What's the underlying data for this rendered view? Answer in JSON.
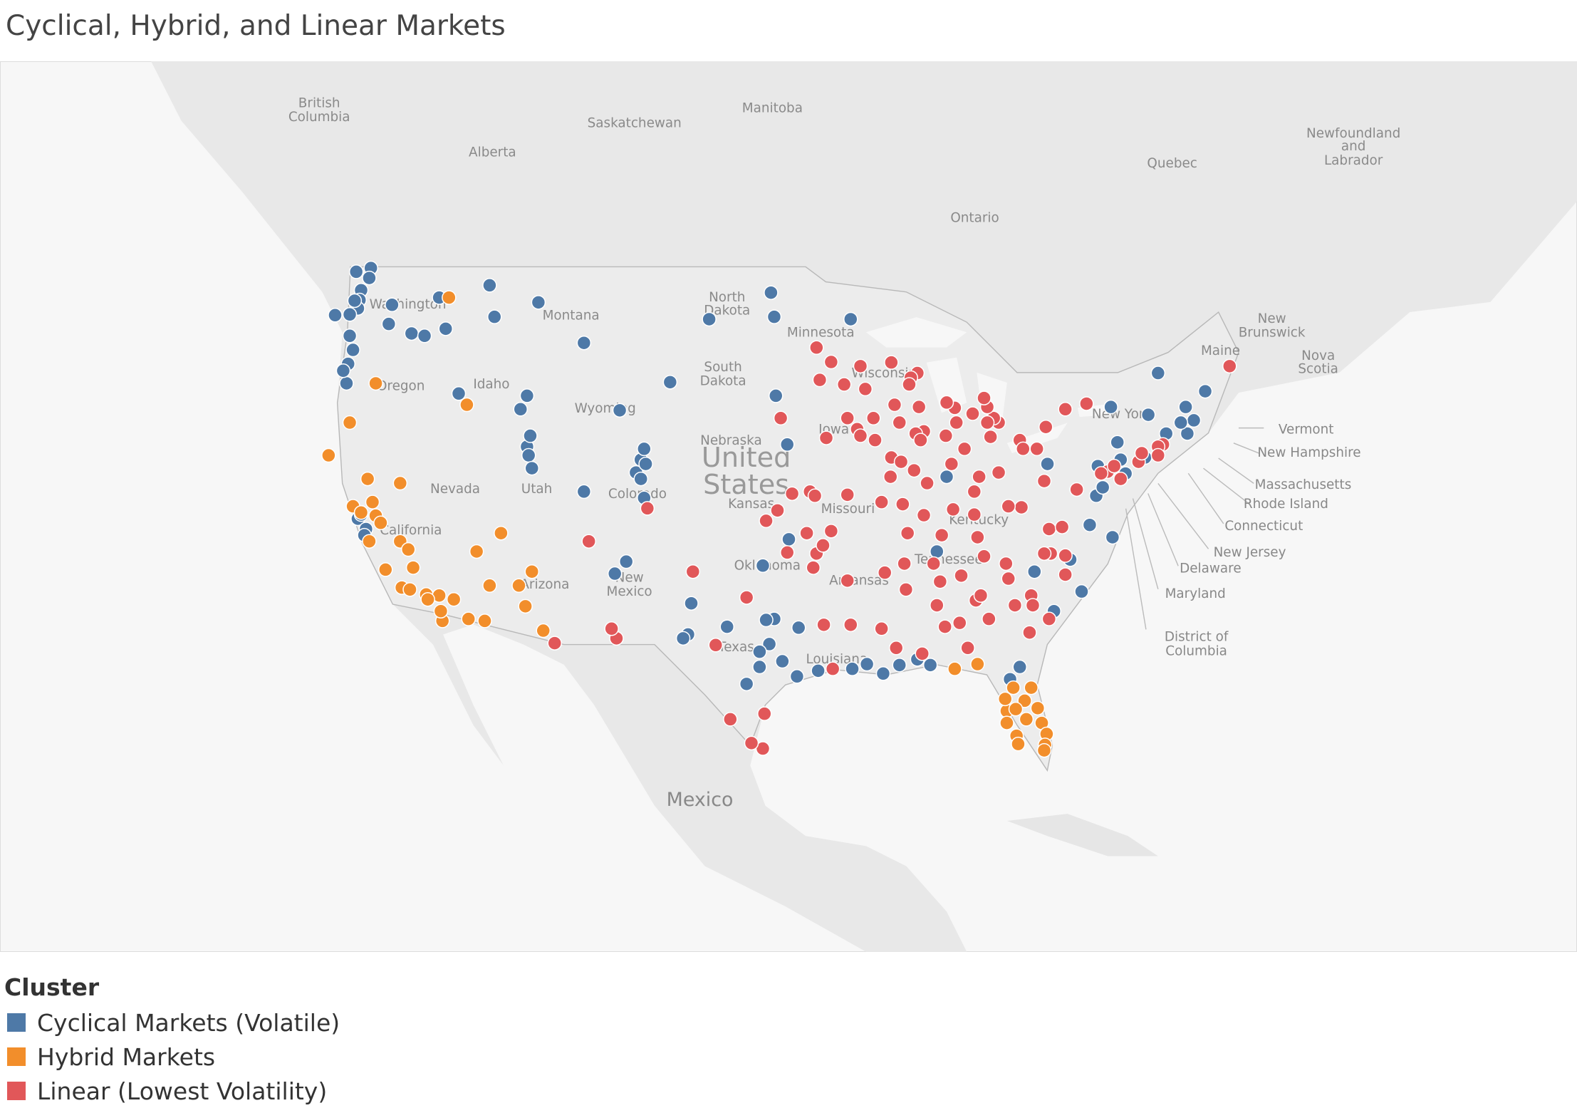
{
  "chart_data": {
    "type": "map",
    "title": "Cyclical, Hybrid, and Linear Markets",
    "legend_title": "Cluster",
    "map_labels": [
      "British",
      "Columbia",
      "Alberta",
      "Saskatchewan",
      "Manitoba",
      "Ontario",
      "Quebec",
      "Newfoundland",
      "and",
      "Labrador",
      "New",
      "Brunswick",
      "Nova",
      "Scotia",
      "Washington",
      "Oregon",
      "Idaho",
      "Montana",
      "Wyoming",
      "North",
      "Dakota",
      "South",
      "Dakota",
      "Minnesota",
      "Wisconsin",
      "Nebraska",
      "United",
      "States",
      "Kansas",
      "Missouri",
      "Iowa",
      "Nevada",
      "Utah",
      "Colorado",
      "California",
      "Arizona",
      "New",
      "Mexico",
      "Oklahoma",
      "Texas",
      "Arkansas",
      "Louisiana",
      "Tennessee",
      "Kentucky",
      "New York",
      "Mexico",
      "Maine",
      "Vermont",
      "New Hampshire",
      "Massachusetts",
      "Rhode Island",
      "Connecticut",
      "New Jersey",
      "Delaware",
      "Maryland",
      "District of",
      "Columbia"
    ],
    "series": [
      {
        "name": "Cyclical Markets (Volatile)",
        "color": "#4e79a7",
        "points": [
          [
            -121.6,
            48.9
          ],
          [
            -121.7,
            48.5
          ],
          [
            -122.5,
            48.75
          ],
          [
            -122.2,
            48.0
          ],
          [
            -122.3,
            47.6
          ],
          [
            -122.4,
            47.25
          ],
          [
            -122.9,
            47.0
          ],
          [
            -122.6,
            47.57
          ],
          [
            -122.9,
            46.1
          ],
          [
            -122.7,
            45.5
          ],
          [
            -123.0,
            44.9
          ],
          [
            -123.1,
            44.05
          ],
          [
            -123.3,
            44.6
          ],
          [
            -123.8,
            46.97
          ],
          [
            -117.4,
            47.7
          ],
          [
            -120.3,
            47.4
          ],
          [
            -120.5,
            46.6
          ],
          [
            -119.1,
            46.2
          ],
          [
            -118.3,
            46.1
          ],
          [
            -117.0,
            46.4
          ],
          [
            -114.0,
            46.9
          ],
          [
            -114.3,
            48.2
          ],
          [
            -108.5,
            45.8
          ],
          [
            -111.3,
            47.5
          ],
          [
            -116.2,
            43.6
          ],
          [
            -112.0,
            43.5
          ],
          [
            -112.4,
            42.9
          ],
          [
            -112.0,
            41.2
          ],
          [
            -111.9,
            40.8
          ],
          [
            -111.7,
            40.2
          ],
          [
            -111.8,
            41.7
          ],
          [
            -122.4,
            37.8
          ],
          [
            -121.9,
            37.3
          ],
          [
            -122.0,
            37.0
          ],
          [
            -122.2,
            38.0
          ],
          [
            -105.0,
            40.6
          ],
          [
            -105.3,
            40.0
          ],
          [
            -105.0,
            39.7
          ],
          [
            -104.7,
            40.4
          ],
          [
            -104.8,
            38.8
          ],
          [
            -104.8,
            41.1
          ],
          [
            -108.5,
            39.1
          ],
          [
            -106.3,
            42.85
          ],
          [
            -100.8,
            46.8
          ],
          [
            -96.8,
            46.9
          ],
          [
            -97.0,
            47.9
          ],
          [
            -103.2,
            44.1
          ],
          [
            -96.7,
            43.5
          ],
          [
            -92.1,
            46.8
          ],
          [
            -96.0,
            41.3
          ],
          [
            -106.6,
            35.1
          ],
          [
            -105.9,
            35.7
          ],
          [
            -97.5,
            35.5
          ],
          [
            -101.9,
            33.6
          ],
          [
            -102.1,
            32.0
          ],
          [
            -102.4,
            31.8
          ],
          [
            -99.7,
            32.4
          ],
          [
            -96.8,
            32.8
          ],
          [
            -97.3,
            32.75
          ],
          [
            -97.1,
            31.5
          ],
          [
            -97.7,
            30.3
          ],
          [
            -98.5,
            29.4
          ],
          [
            -95.4,
            29.8
          ],
          [
            -94.1,
            30.1
          ],
          [
            -97.7,
            31.1
          ],
          [
            -95.3,
            32.35
          ],
          [
            -92.0,
            30.2
          ],
          [
            -91.1,
            30.45
          ],
          [
            -90.1,
            29.95
          ],
          [
            -89.1,
            30.4
          ],
          [
            -88.0,
            30.7
          ],
          [
            -87.2,
            30.4
          ],
          [
            -86.8,
            36.2
          ],
          [
            -86.2,
            39.8
          ],
          [
            -80.8,
            35.2
          ],
          [
            -78.6,
            35.8
          ],
          [
            -79.6,
            33.2
          ],
          [
            -77.9,
            34.2
          ],
          [
            -77.0,
            38.9
          ],
          [
            -76.6,
            39.3
          ],
          [
            -77.4,
            37.5
          ],
          [
            -76.0,
            36.9
          ],
          [
            -75.2,
            39.95
          ],
          [
            -74.0,
            40.7
          ],
          [
            -71.0,
            42.4
          ],
          [
            -72.7,
            41.8
          ],
          [
            -71.4,
            41.8
          ],
          [
            -71.8,
            42.3
          ],
          [
            -73.8,
            42.65
          ],
          [
            -76.1,
            43.0
          ],
          [
            -73.2,
            44.5
          ],
          [
            -70.3,
            43.7
          ],
          [
            -71.5,
            43.0
          ],
          [
            -80.0,
            40.4
          ],
          [
            -76.9,
            40.3
          ],
          [
            -75.5,
            40.6
          ],
          [
            -75.7,
            41.4
          ],
          [
            -81.7,
            30.3
          ],
          [
            -82.3,
            29.65
          ],
          [
            -96.3,
            30.6
          ],
          [
            -95.9,
            36.8
          ]
        ]
      },
      {
        "name": "Hybrid Markets",
        "color": "#f28e2b",
        "points": [
          [
            -116.8,
            47.7
          ],
          [
            -121.3,
            44.05
          ],
          [
            -115.7,
            43.1
          ],
          [
            -122.9,
            42.3
          ],
          [
            -124.2,
            40.8
          ],
          [
            -119.8,
            39.5
          ],
          [
            -121.5,
            38.6
          ],
          [
            -121.3,
            37.95
          ],
          [
            -121.0,
            37.6
          ],
          [
            -119.8,
            36.7
          ],
          [
            -119.3,
            36.3
          ],
          [
            -119.0,
            35.4
          ],
          [
            -119.7,
            34.4
          ],
          [
            -119.2,
            34.3
          ],
          [
            -118.2,
            34.05
          ],
          [
            -117.4,
            34.0
          ],
          [
            -117.2,
            32.7
          ],
          [
            -116.5,
            33.8
          ],
          [
            -115.1,
            36.2
          ],
          [
            -112.1,
            33.45
          ],
          [
            -111.0,
            32.2
          ],
          [
            -112.5,
            34.5
          ],
          [
            -111.7,
            35.2
          ],
          [
            -114.6,
            32.7
          ],
          [
            -115.6,
            32.8
          ],
          [
            -121.8,
            39.7
          ],
          [
            -122.7,
            38.4
          ],
          [
            -122.2,
            38.1
          ],
          [
            -121.7,
            36.7
          ],
          [
            -120.7,
            35.3
          ],
          [
            -113.6,
            37.1
          ],
          [
            -117.3,
            33.2
          ],
          [
            -118.1,
            33.8
          ],
          [
            -114.3,
            34.5
          ],
          [
            -82.1,
            29.2
          ],
          [
            -81.4,
            28.5
          ],
          [
            -82.5,
            27.95
          ],
          [
            -81.95,
            28.05
          ],
          [
            -82.5,
            27.3
          ],
          [
            -81.9,
            26.6
          ],
          [
            -81.8,
            26.15
          ],
          [
            -80.35,
            27.3
          ],
          [
            -80.05,
            26.7
          ],
          [
            -80.15,
            26.1
          ],
          [
            -80.2,
            25.8
          ],
          [
            -81.0,
            29.2
          ],
          [
            -80.6,
            28.1
          ],
          [
            -85.7,
            30.2
          ],
          [
            -84.3,
            30.45
          ],
          [
            -82.6,
            28.6
          ],
          [
            -81.3,
            27.5
          ]
        ]
      },
      {
        "name": "Linear (Lowest Volatility)",
        "color": "#e15759",
        "points": [
          [
            -93.3,
            44.98
          ],
          [
            -94.2,
            45.6
          ],
          [
            -92.5,
            44.0
          ],
          [
            -94.0,
            44.2
          ],
          [
            -91.5,
            44.8
          ],
          [
            -91.2,
            43.8
          ],
          [
            -89.4,
            43.1
          ],
          [
            -87.9,
            43.0
          ],
          [
            -88.0,
            44.5
          ],
          [
            -88.4,
            44.3
          ],
          [
            -88.5,
            44.0
          ],
          [
            -89.6,
            44.96
          ],
          [
            -87.6,
            41.9
          ],
          [
            -88.1,
            41.8
          ],
          [
            -87.8,
            41.5
          ],
          [
            -89.1,
            42.3
          ],
          [
            -89.6,
            40.7
          ],
          [
            -89.65,
            39.8
          ],
          [
            -88.2,
            40.1
          ],
          [
            -89.0,
            40.5
          ],
          [
            -90.6,
            41.5
          ],
          [
            -91.7,
            42.0
          ],
          [
            -91.5,
            41.7
          ],
          [
            -93.6,
            41.6
          ],
          [
            -92.3,
            42.5
          ],
          [
            -90.7,
            42.5
          ],
          [
            -96.4,
            42.5
          ],
          [
            -83.0,
            42.3
          ],
          [
            -83.3,
            42.5
          ],
          [
            -85.7,
            42.96
          ],
          [
            -84.6,
            42.7
          ],
          [
            -83.7,
            43.0
          ],
          [
            -83.7,
            42.3
          ],
          [
            -85.6,
            42.3
          ],
          [
            -83.9,
            43.4
          ],
          [
            -86.2,
            43.2
          ],
          [
            -83.5,
            41.65
          ],
          [
            -81.7,
            41.5
          ],
          [
            -81.5,
            41.1
          ],
          [
            -83.0,
            40.0
          ],
          [
            -84.5,
            39.1
          ],
          [
            -84.2,
            39.8
          ],
          [
            -85.1,
            41.1
          ],
          [
            -86.25,
            41.7
          ],
          [
            -87.6,
            37.97
          ],
          [
            -85.8,
            38.25
          ],
          [
            -84.5,
            38.0
          ],
          [
            -90.2,
            38.6
          ],
          [
            -94.6,
            39.1
          ],
          [
            -94.3,
            38.9
          ],
          [
            -93.3,
            37.2
          ],
          [
            -92.3,
            38.95
          ],
          [
            -95.7,
            39.0
          ],
          [
            -97.3,
            37.7
          ],
          [
            -96.0,
            36.15
          ],
          [
            -92.3,
            34.75
          ],
          [
            -94.2,
            36.1
          ],
          [
            -94.4,
            35.4
          ],
          [
            -90.0,
            35.15
          ],
          [
            -90.2,
            32.3
          ],
          [
            -86.8,
            33.5
          ],
          [
            -86.3,
            32.4
          ],
          [
            -86.6,
            34.7
          ],
          [
            -85.3,
            35.0
          ],
          [
            -83.9,
            35.96
          ],
          [
            -84.4,
            33.75
          ],
          [
            -84.1,
            34.0
          ],
          [
            -83.6,
            32.8
          ],
          [
            -82.0,
            33.5
          ],
          [
            -81.0,
            34.0
          ],
          [
            -82.4,
            34.85
          ],
          [
            -82.55,
            35.6
          ],
          [
            -81.1,
            32.1
          ],
          [
            -79.9,
            32.8
          ],
          [
            -79.9,
            37.3
          ],
          [
            -79.1,
            37.4
          ],
          [
            -79.8,
            36.1
          ],
          [
            -80.2,
            36.1
          ],
          [
            -78.9,
            36.0
          ],
          [
            -78.9,
            35.05
          ],
          [
            -78.9,
            42.9
          ],
          [
            -77.6,
            43.15
          ],
          [
            -80.1,
            42.1
          ],
          [
            -80.65,
            41.1
          ],
          [
            -72.9,
            41.3
          ],
          [
            -73.2,
            41.2
          ],
          [
            -74.4,
            40.5
          ],
          [
            -74.2,
            40.9
          ],
          [
            -73.2,
            40.8
          ],
          [
            -76.3,
            40.04
          ],
          [
            -75.9,
            40.3
          ],
          [
            -76.7,
            39.96
          ],
          [
            -75.5,
            39.7
          ],
          [
            -68.8,
            44.8
          ],
          [
            -81.6,
            38.35
          ],
          [
            -82.4,
            38.4
          ],
          [
            -93.75,
            32.5
          ],
          [
            -93.2,
            30.2
          ],
          [
            -97.4,
            27.8
          ],
          [
            -97.5,
            25.9
          ],
          [
            -98.2,
            26.2
          ],
          [
            -99.5,
            27.5
          ],
          [
            -106.5,
            31.8
          ],
          [
            -106.8,
            32.3
          ],
          [
            -110.3,
            31.55
          ],
          [
            -108.2,
            36.7
          ],
          [
            -104.6,
            38.3
          ],
          [
            -101.8,
            35.2
          ],
          [
            -100.4,
            31.45
          ],
          [
            -98.5,
            33.9
          ],
          [
            -94.8,
            37.1
          ],
          [
            -92.1,
            32.5
          ],
          [
            -88.7,
            34.3
          ],
          [
            -87.7,
            31.0
          ],
          [
            -89.3,
            31.3
          ],
          [
            -85.4,
            32.6
          ],
          [
            -84.9,
            31.3
          ],
          [
            -80.9,
            33.5
          ],
          [
            -78.2,
            39.2
          ],
          [
            -80.2,
            39.6
          ],
          [
            -85.9,
            40.4
          ],
          [
            -87.4,
            39.5
          ],
          [
            -88.9,
            38.5
          ],
          [
            -86.5,
            37.0
          ],
          [
            -84.3,
            36.9
          ],
          [
            -88.6,
            37.1
          ],
          [
            -87.0,
            35.6
          ],
          [
            -88.8,
            35.6
          ],
          [
            -93.8,
            36.5
          ],
          [
            -96.6,
            38.2
          ]
        ]
      }
    ]
  }
}
